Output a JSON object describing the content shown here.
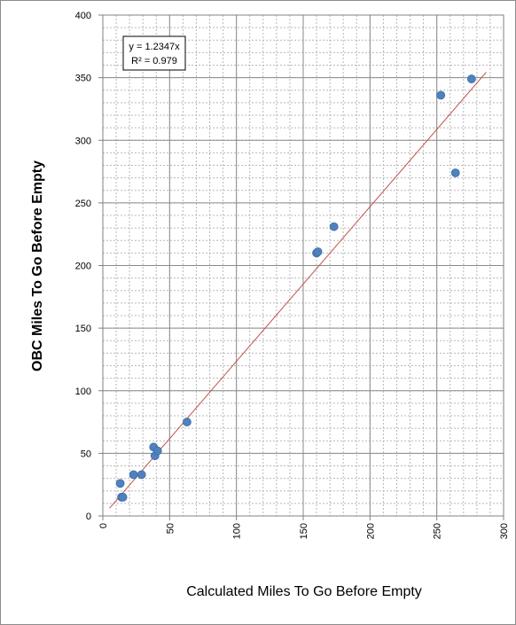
{
  "chart_data": {
    "type": "scatter",
    "title": "",
    "xlabel": "Calculated Miles To Go Before Empty",
    "ylabel": "OBC Miles To Go Before Empty",
    "xlim": [
      0,
      300
    ],
    "ylim": [
      0,
      400
    ],
    "x_ticks": [
      0,
      50,
      100,
      150,
      200,
      250,
      300
    ],
    "y_ticks": [
      0,
      50,
      100,
      150,
      200,
      250,
      300,
      350,
      400
    ],
    "x_tick_labels": [
      "0",
      "50",
      "100",
      "150",
      "200",
      "250",
      "300"
    ],
    "y_tick_labels": [
      "0",
      "50",
      "100",
      "150",
      "200",
      "250",
      "300",
      "350",
      "400"
    ],
    "grid": true,
    "minor_grid": true,
    "series": [
      {
        "color": "#4f81bd",
        "points": [
          {
            "x": 13,
            "y": 26
          },
          {
            "x": 14,
            "y": 15
          },
          {
            "x": 15,
            "y": 15
          },
          {
            "x": 23,
            "y": 33
          },
          {
            "x": 29,
            "y": 33
          },
          {
            "x": 38,
            "y": 55
          },
          {
            "x": 39,
            "y": 48
          },
          {
            "x": 41,
            "y": 52
          },
          {
            "x": 63,
            "y": 75
          },
          {
            "x": 160,
            "y": 210
          },
          {
            "x": 161,
            "y": 211
          },
          {
            "x": 173,
            "y": 231
          },
          {
            "x": 253,
            "y": 336
          },
          {
            "x": 264,
            "y": 274
          },
          {
            "x": 276,
            "y": 349
          }
        ]
      }
    ],
    "trendline": {
      "type": "linear-through-origin",
      "slope": 1.2347,
      "x_range": [
        5,
        287
      ],
      "color": "#c0504d",
      "equation": "y = 1.2347x",
      "r2_label": "R² = 0.979"
    }
  }
}
